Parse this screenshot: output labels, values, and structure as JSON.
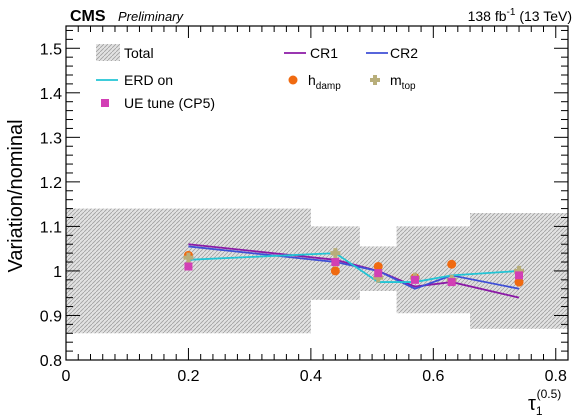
{
  "header": {
    "experiment": "CMS",
    "status": "Preliminary",
    "lumi_value": "138 fb",
    "lumi_exp": "-1",
    "lumi_energy": " (13 TeV)"
  },
  "chart_data": {
    "type": "line",
    "ylabel": "Variation/nominal",
    "xlabel_base": "τ",
    "xlabel_sub": "1",
    "xlabel_sup": "(0.5)",
    "xlim": [
      0,
      0.82
    ],
    "ylim": [
      0.8,
      1.55
    ],
    "xticks": [
      0,
      0.2,
      0.4,
      0.6,
      0.8
    ],
    "xtick_labels": [
      "0",
      "0.2",
      "0.4",
      "0.6",
      "0.8"
    ],
    "yticks": [
      0.8,
      0.9,
      1.0,
      1.1,
      1.2,
      1.3,
      1.4,
      1.5
    ],
    "ytick_labels": [
      "0.8",
      "0.9",
      "1",
      "1.1",
      "1.2",
      "1.3",
      "1.4",
      "1.5"
    ],
    "total_band": [
      {
        "x0": 0.0,
        "x1": 0.4,
        "lo": 0.86,
        "hi": 1.14
      },
      {
        "x0": 0.4,
        "x1": 0.48,
        "lo": 0.935,
        "hi": 1.1
      },
      {
        "x0": 0.48,
        "x1": 0.54,
        "lo": 0.955,
        "hi": 1.055
      },
      {
        "x0": 0.54,
        "x1": 0.66,
        "lo": 0.905,
        "hi": 1.1
      },
      {
        "x0": 0.66,
        "x1": 0.82,
        "lo": 0.87,
        "hi": 1.13
      }
    ],
    "x": [
      0.2,
      0.44,
      0.51,
      0.57,
      0.63,
      0.74
    ],
    "series": [
      {
        "name": "CR1",
        "kind": "line",
        "color": "#8b1aa6",
        "values": [
          1.06,
          1.025,
          1.0,
          0.965,
          0.975,
          0.94
        ]
      },
      {
        "name": "CR2",
        "kind": "line",
        "color": "#3f4fd6",
        "values": [
          1.055,
          1.02,
          1.0,
          0.96,
          0.99,
          0.96
        ]
      },
      {
        "name": "ERD on",
        "kind": "line",
        "color": "#22c4d4",
        "values": [
          1.025,
          1.04,
          0.975,
          0.975,
          0.99,
          1.0
        ]
      },
      {
        "name": "h_damp",
        "kind": "circle",
        "color": "#f06a10",
        "values": [
          1.035,
          1.0,
          1.01,
          0.985,
          1.015,
          0.975
        ]
      },
      {
        "name": "m_top",
        "kind": "cross",
        "color": "#b8ae7a",
        "values": [
          1.03,
          1.04,
          0.985,
          0.985,
          0.98,
          1.0
        ]
      },
      {
        "name": "UE tune (CP5)",
        "kind": "square",
        "color": "#d23fb5",
        "values": [
          1.01,
          1.02,
          0.995,
          0.98,
          0.975,
          0.99
        ]
      }
    ],
    "legend": {
      "placement": "top",
      "entries": [
        {
          "label": "Total",
          "kind": "band"
        },
        {
          "label": "CR1",
          "kind": "line",
          "color": "#8b1aa6"
        },
        {
          "label": "CR2",
          "kind": "line",
          "color": "#3f4fd6"
        },
        {
          "label": "ERD on",
          "kind": "line",
          "color": "#22c4d4"
        },
        {
          "label": "h",
          "sub": "damp",
          "kind": "circle",
          "color": "#f06a10"
        },
        {
          "label": "m",
          "sub": "top",
          "kind": "cross",
          "color": "#b8ae7a"
        },
        {
          "label": "UE tune (CP5)",
          "kind": "square",
          "color": "#d23fb5"
        }
      ]
    }
  }
}
